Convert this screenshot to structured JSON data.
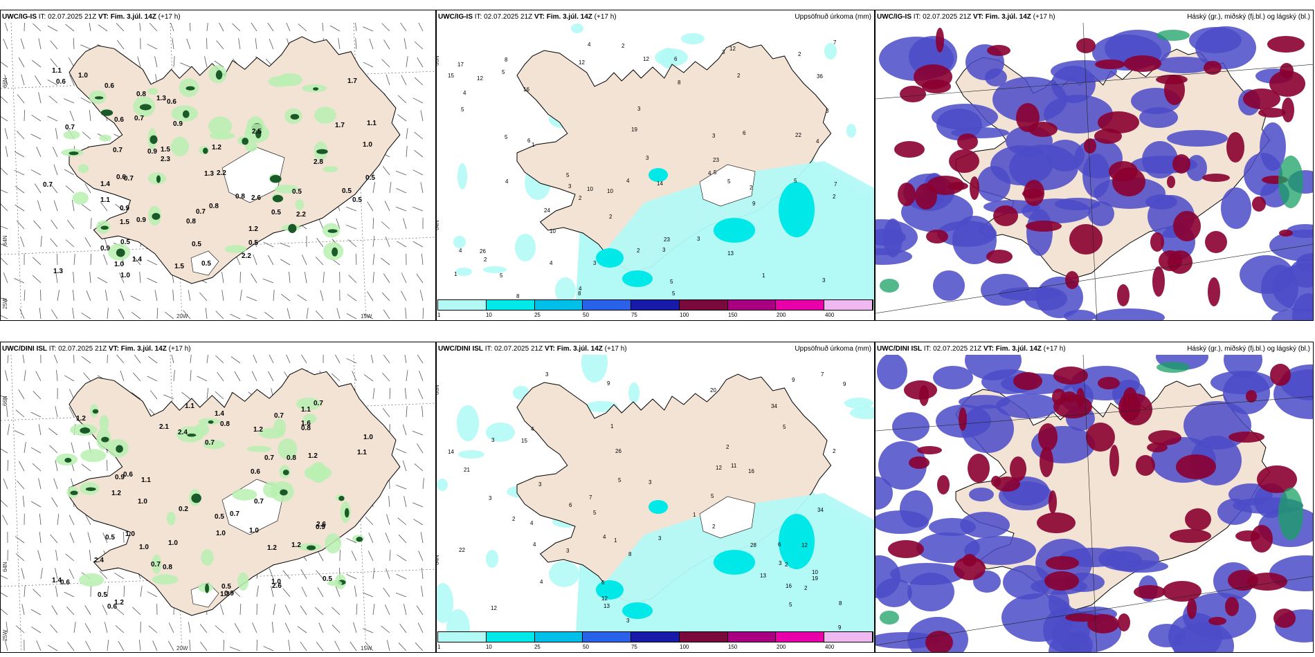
{
  "colors": {
    "land": "#f2e3d5",
    "coast": "#000000",
    "precip_scale": [
      "#b3f9f6",
      "#00e8e8",
      "#00bfe8",
      "#2962e8",
      "#1a1aa8",
      "#7a0a3c",
      "#a80080",
      "#e800a8",
      "#f0b8f0"
    ],
    "cloud_high": "#8a0030",
    "cloud_mid": "#4b4bc8",
    "cloud_low": "#1aa064",
    "rain_light": "#b8f0b0",
    "rain_dark": "#1a5a28"
  },
  "rows": [
    {
      "model": "UWC/IG-IS",
      "it_label": "IT:",
      "it_value": "02.07.2025 21Z",
      "vt_label": "VT:",
      "vt_value": "Fim. 3.júl. 14Z",
      "lead": "(+17 h)",
      "wind_values": [
        "0.6",
        "1.1",
        "0.7",
        "1.7",
        "1.1",
        "1.2",
        "0.6",
        "0.9",
        "1.3",
        "0.5",
        "1.5",
        "2.2",
        "1.0",
        "1.1",
        "0.7",
        "0.9",
        "0.8",
        "0.9",
        "0.7",
        "1.5",
        "1.0",
        "0.5",
        "1.4",
        "0.6",
        "1.4",
        "0.8",
        "0.9",
        "2.2",
        "1.5",
        "1.3",
        "0.8",
        "0.8",
        "1.7",
        "0.5",
        "1.3",
        "0.7",
        "0.6",
        "2.3",
        "0.5",
        "2.5",
        "0.6",
        "0.5",
        "2.6",
        "0.9",
        "1.0",
        "1.2",
        "0.5",
        "2.8",
        "2.2",
        "0.7",
        "0.5",
        "0.7",
        "1.0",
        "0.5",
        "0.5"
      ],
      "precip_values": [
        "2",
        "3",
        "5",
        "3",
        "4",
        "5",
        "6",
        "2",
        "3",
        "4",
        "2",
        "5",
        "2",
        "3",
        "1",
        "3",
        "2",
        "3",
        "4",
        "5",
        "2",
        "3",
        "1",
        "4",
        "5",
        "8",
        "7",
        "5",
        "6",
        "2",
        "3",
        "4",
        "1",
        "12",
        "16",
        "10",
        "7",
        "12",
        "19",
        "36",
        "5",
        "4",
        "3",
        "2",
        "4",
        "5",
        "8",
        "10",
        "12",
        "13",
        "17",
        "23",
        "8",
        "22",
        "24",
        "26",
        "10",
        "8",
        "9",
        "14",
        "12",
        "23",
        "15",
        "4",
        "2",
        "4",
        "5",
        "6",
        "3",
        "5"
      ],
      "precip_title": "Uppsöfnuð úrkoma (mm)",
      "cloud_title": "Háský (gr.), miðský (fj.bl.) og lágský (bl.)"
    },
    {
      "model": "UWC/DINI ISL",
      "it_label": "IT:",
      "it_value": "02.07.2025 21Z",
      "vt_label": "VT:",
      "vt_value": "Fim. 3.júl. 14Z",
      "lead": "(+17 h)",
      "wind_values": [
        "0.9",
        "0.8",
        "1.1",
        "1.2",
        "1.1",
        "1.2",
        "2.6",
        "1.0",
        "1.6",
        "1.1",
        "0.8",
        "2.1",
        "0.5",
        "1.0",
        "0.6",
        "0.5",
        "0.9",
        "0.8",
        "1.0",
        "0.6",
        "0.7",
        "2.4",
        "1.0",
        "0.5",
        "1.1",
        "1.2",
        "0.7",
        "1.0",
        "0.7",
        "0.9",
        "2.6",
        "1.0",
        "0.6",
        "1.2",
        "0.7",
        "1.3",
        "1.2",
        "0.7",
        "1.4",
        "0.5",
        "0.6",
        "0.7",
        "2.4",
        "1.0",
        "1.0",
        "1.2",
        "0.2",
        "0.8",
        "0.5",
        "0.7",
        "1.4",
        "1.2"
      ],
      "precip_values": [
        "2",
        "1",
        "2",
        "3",
        "1",
        "6",
        "3",
        "4",
        "5",
        "3",
        "2",
        "3",
        "4",
        "5",
        "2",
        "3",
        "1",
        "3",
        "4",
        "2",
        "3",
        "5",
        "6",
        "8",
        "11",
        "16",
        "21",
        "12",
        "14",
        "9",
        "13",
        "10",
        "9",
        "12",
        "34",
        "28",
        "34",
        "22",
        "26",
        "16",
        "19",
        "15",
        "8",
        "13",
        "12",
        "20",
        "9",
        "7",
        "4",
        "3",
        "5",
        "9",
        "12",
        "7",
        "6",
        "5",
        "4",
        "3",
        "2"
      ],
      "precip_title": "Uppsöfnuð úrkoma (mm)",
      "cloud_title": "Háský (gr.), miðský (fj.bl.) og lágský (bl.)"
    }
  ],
  "legend_ticks": [
    "1",
    "10",
    "25",
    "50",
    "75",
    "100",
    "150",
    "200",
    "400"
  ],
  "axis_labels": {
    "lat_66": "66N",
    "lat_64": "64N",
    "lon_25": "25W",
    "lon_20": "20W",
    "lon_15": "15W"
  }
}
